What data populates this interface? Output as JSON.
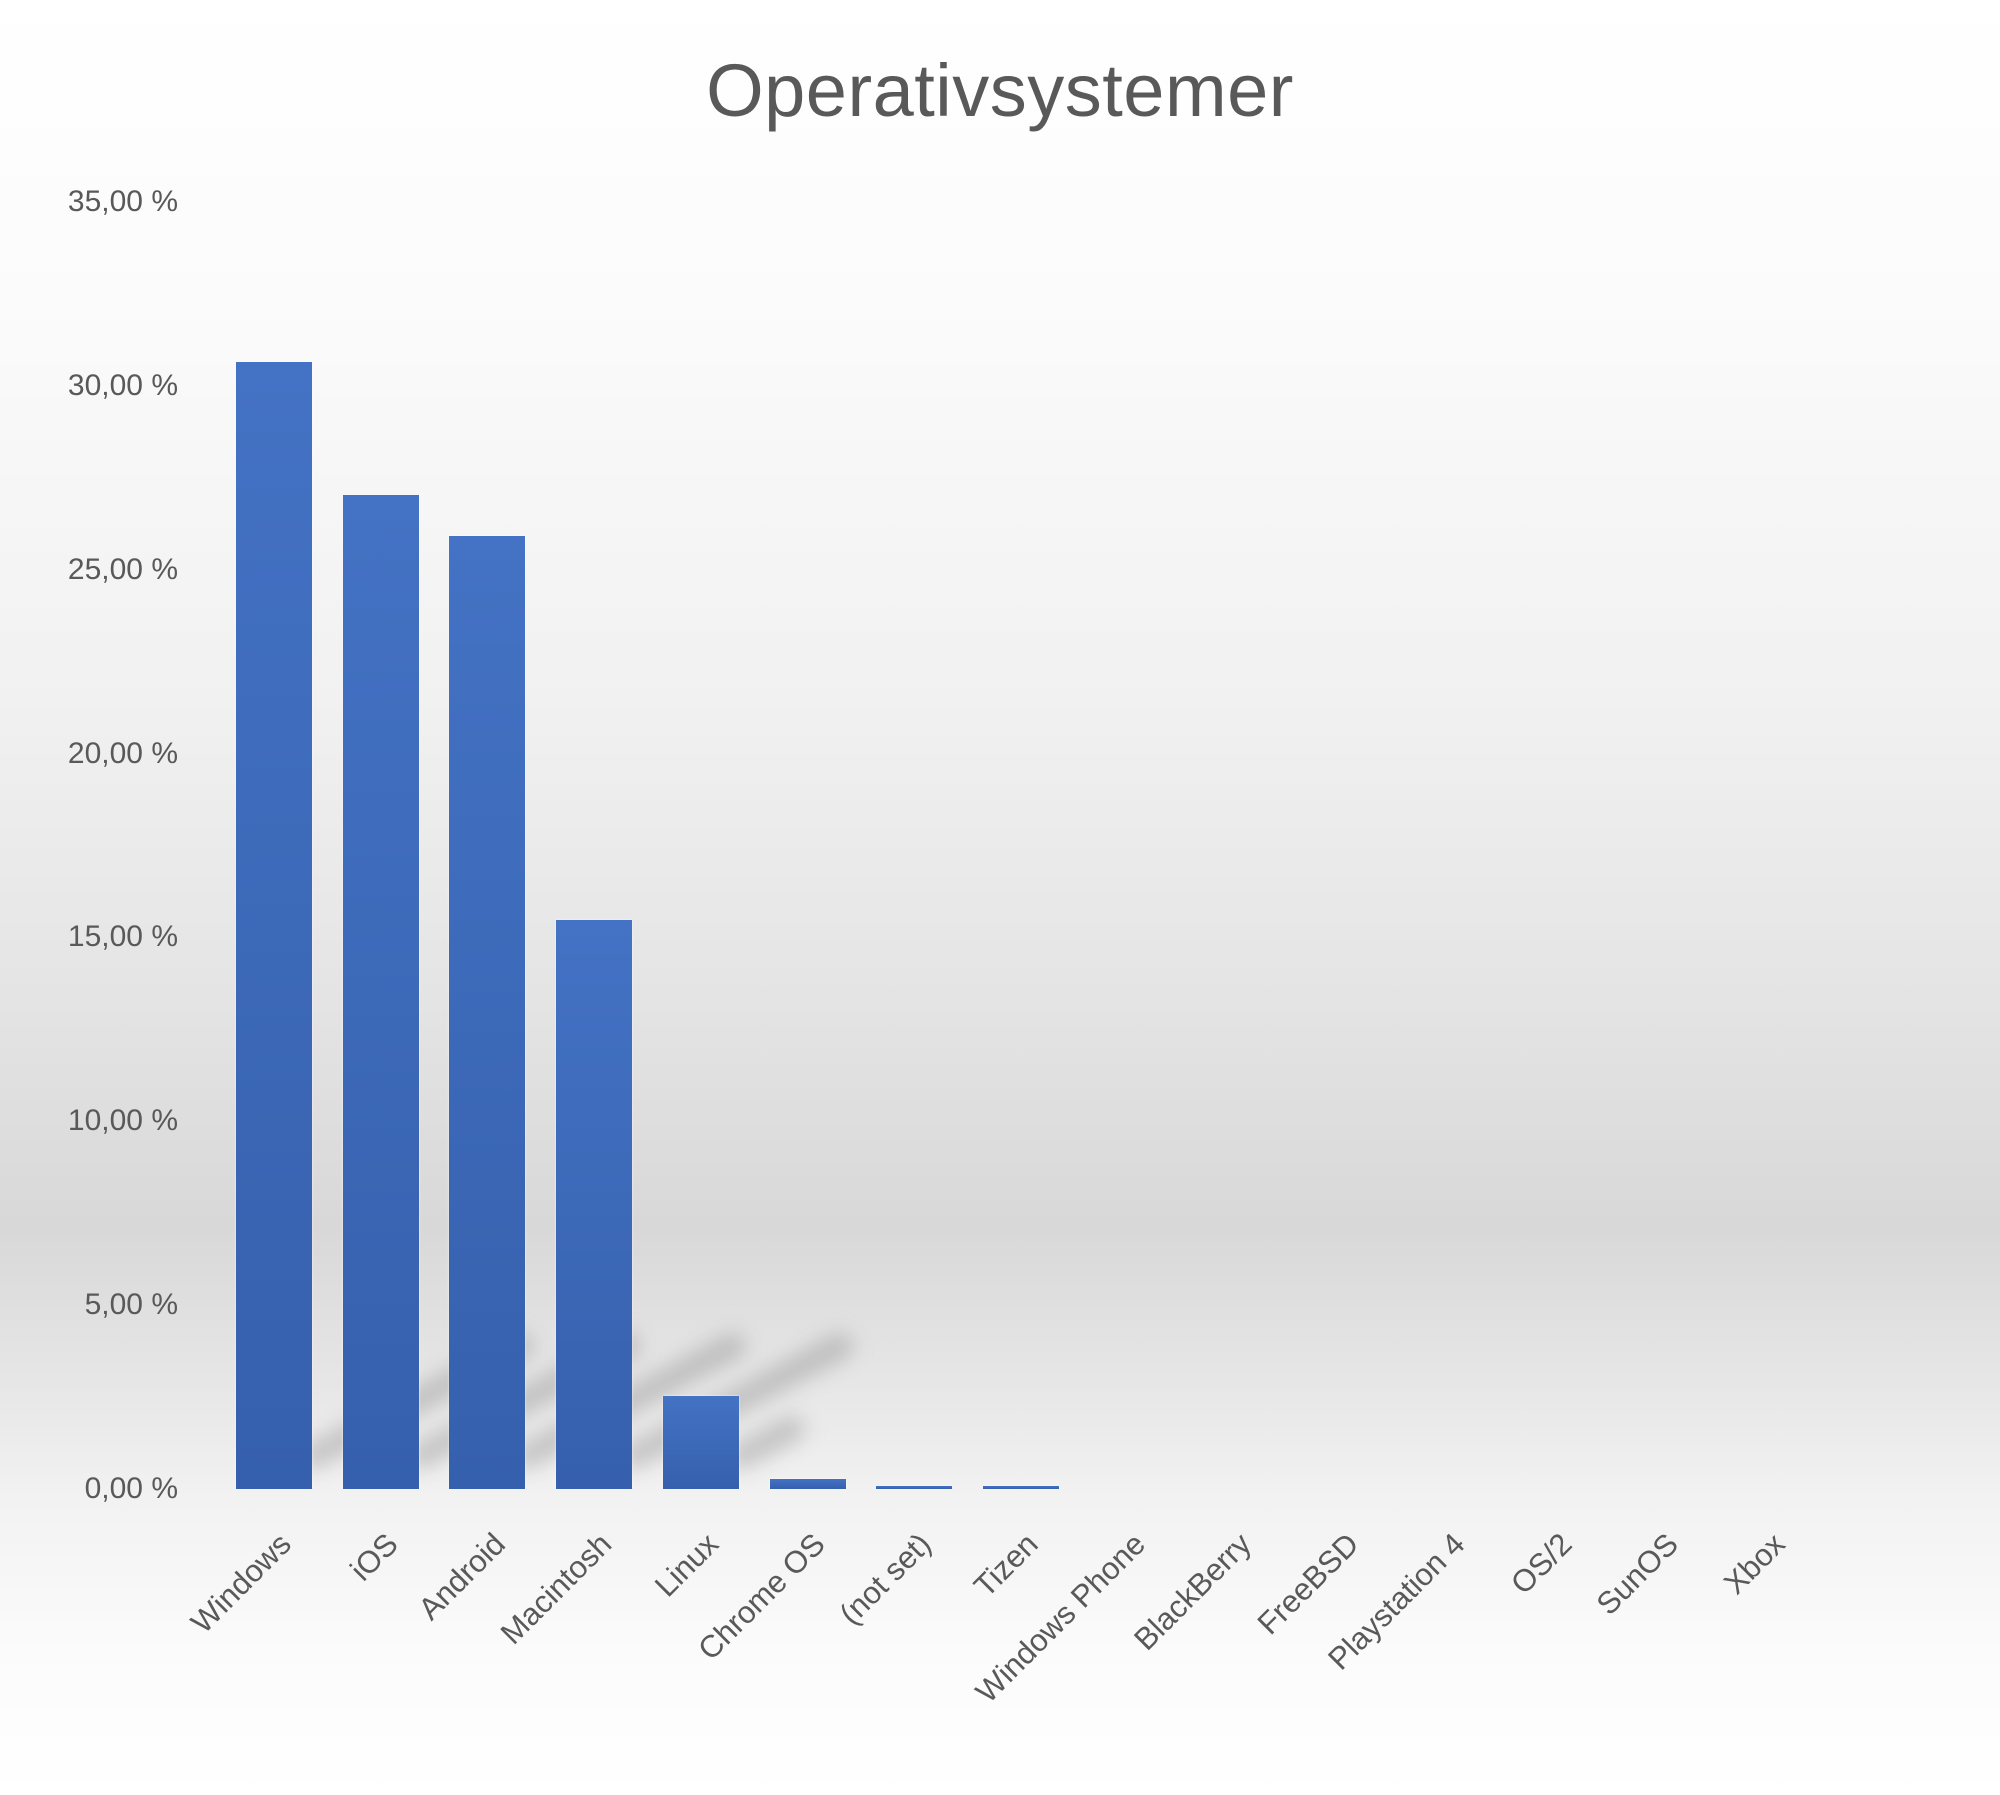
{
  "chart": {
    "title": "Operativsystemer",
    "y_ticks": [
      "35,00 %",
      "30,00 %",
      "25,00 %",
      "20,00 %",
      "15,00 %",
      "10,00 %",
      "5,00 %",
      "0,00 %"
    ],
    "bar_color": "#4472C4"
  },
  "chart_data": {
    "type": "bar",
    "title": "Operativsystemer",
    "xlabel": "",
    "ylabel": "",
    "ylim": [
      0,
      35
    ],
    "y_tick_values": [
      0,
      5,
      10,
      15,
      20,
      25,
      30,
      35
    ],
    "y_tick_format": "0,00 %",
    "grid": false,
    "legend": null,
    "categories": [
      "Windows",
      "iOS",
      "Android",
      "Macintosh",
      "Linux",
      "Chrome OS",
      "(not set)",
      "Tizen",
      "Windows Phone",
      "BlackBerry",
      "FreeBSD",
      "Playstation 4",
      "OS/2",
      "SunOS",
      "Xbox"
    ],
    "values": [
      30.65,
      27.03,
      25.92,
      15.47,
      2.53,
      0.27,
      0.08,
      0.07,
      0.0,
      0.0,
      0.0,
      0.0,
      0.0,
      0.0,
      0.0
    ],
    "unit": "%"
  }
}
